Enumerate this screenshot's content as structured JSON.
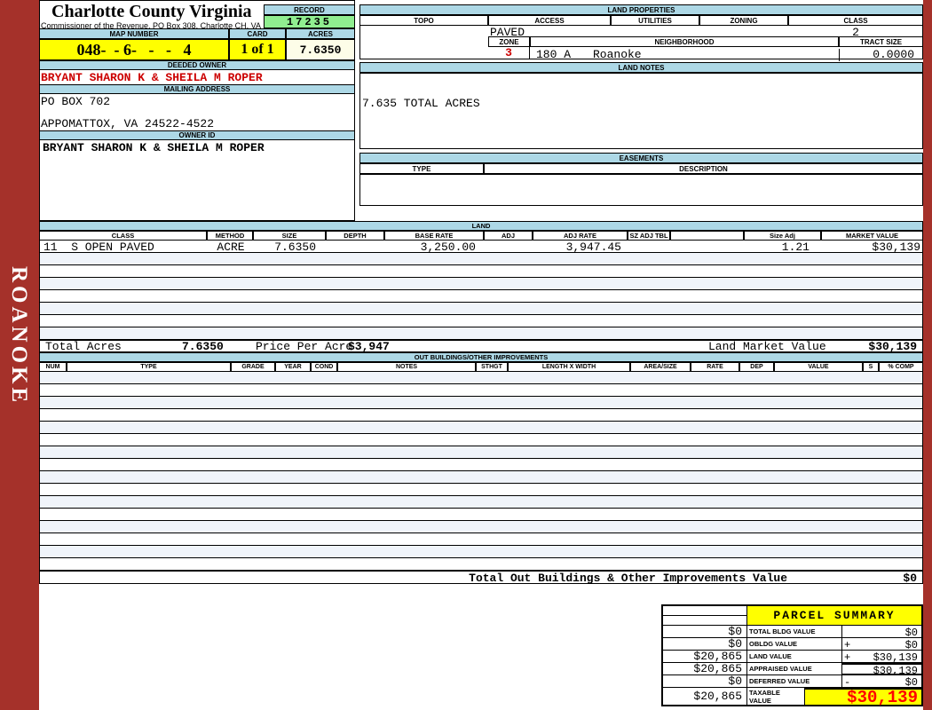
{
  "sidebar": {
    "vertical_label": "ROANOKE"
  },
  "header": {
    "county_title": "Charlotte County Virginia",
    "county_subtitle": "Commissioner of the Revenue, PO Box 308, Charlotte CH, VA",
    "record_label": "RECORD",
    "record_value": "17235",
    "map_number_label": "MAP NUMBER",
    "map_number_value": "048-  - 6-   -   -   4",
    "card_label": "CARD",
    "card_value": "1 of 1",
    "acres_label": "ACRES",
    "acres_value": "7.6350"
  },
  "owner": {
    "deeded_owner_label": "DEEDED OWNER",
    "deeded_owner": "BRYANT SHARON K & SHEILA M ROPER",
    "mailing_address_label": "MAILING ADDRESS",
    "address_line1": "PO BOX 702",
    "address_line2": "APPOMATTOX, VA 24522-4522",
    "owner_id_label": "OWNER ID",
    "owner_id": "BRYANT SHARON K & SHEILA M ROPER"
  },
  "land_properties": {
    "title": "LAND PROPERTIES",
    "columns": [
      "TOPO",
      "ACCESS",
      "UTILITIES",
      "ZONING",
      "CLASS"
    ],
    "access_value": "PAVED",
    "class_value": "2",
    "zone_label": "ZONE",
    "zone_value": "3",
    "neighborhood_label": "NEIGHBORHOOD",
    "neighborhood_code": "180 A",
    "neighborhood_name": "Roanoke",
    "tract_size_label": "TRACT SIZE",
    "tract_size_value": "0.0000"
  },
  "land_notes": {
    "title": "LAND NOTES",
    "note": "7.635 TOTAL ACRES"
  },
  "easements": {
    "title": "EASEMENTS",
    "columns": [
      "TYPE",
      "DESCRIPTION"
    ]
  },
  "land": {
    "title": "LAND",
    "columns": [
      "CLASS",
      "METHOD",
      "SIZE",
      "DEPTH",
      "BASE RATE",
      "ADJ",
      "ADJ RATE",
      "SZ ADJ TBL",
      "",
      "Size Adj",
      "MARKET VALUE"
    ],
    "rows": [
      {
        "class": "11  S OPEN PAVED",
        "method": "ACRE",
        "size": "7.6350",
        "depth": "",
        "base_rate": "3,250.00",
        "adj": "",
        "adj_rate": "3,947.45",
        "sz_adj_tbl": "",
        "size_adj": "1.21",
        "market_value": "$30,139"
      }
    ],
    "empty_row_count": 7,
    "totals": {
      "total_acres_label": "Total Acres",
      "total_acres": "7.6350",
      "price_per_acre_label": "Price Per Acre",
      "price_per_acre": "$3,947",
      "land_market_value_label": "Land Market Value",
      "land_market_value": "$30,139"
    }
  },
  "out_buildings": {
    "title": "OUT BUILDINGS/OTHER IMPROVEMENTS",
    "columns": [
      "NUM",
      "TYPE",
      "GRADE",
      "YEAR",
      "COND",
      "NOTES",
      "STHGT",
      "LENGTH X WIDTH",
      "AREA/SIZE",
      "RATE",
      "DEP",
      "VALUE",
      "S",
      "% COMP"
    ],
    "empty_row_count": 16,
    "total_label": "Total Out Buildings & Other Improvements Value",
    "total_value": "$0"
  },
  "parcel_summary": {
    "title": "PARCEL SUMMARY",
    "rows": [
      {
        "left": "$0",
        "label": "TOTAL BLDG VALUE",
        "op": "",
        "value": "$0"
      },
      {
        "left": "$0",
        "label": "OBLDG VALUE",
        "op": "+",
        "value": "$0"
      },
      {
        "left": "$20,865",
        "label": "LAND VALUE",
        "op": "+",
        "value": "$30,139"
      },
      {
        "left": "$20,865",
        "label": "APPRAISED VALUE",
        "op": "",
        "value": "$30,139"
      },
      {
        "left": "$0",
        "label": "DEFERRED VALUE",
        "op": "-",
        "value": "$0"
      }
    ],
    "taxable": {
      "left": "$20,865",
      "label_line1": "TAXABLE",
      "label_line2": "VALUE",
      "value": "$30,139"
    }
  },
  "colors": {
    "frame_red": "#A5312A",
    "section_header_blue": "#ADD8E6",
    "record_green": "#90EE90",
    "highlight_yellow": "#FFFF00",
    "acres_cream": "#FDFDE8",
    "owner_red": "#CC0000",
    "taxable_red": "#FF0000"
  }
}
